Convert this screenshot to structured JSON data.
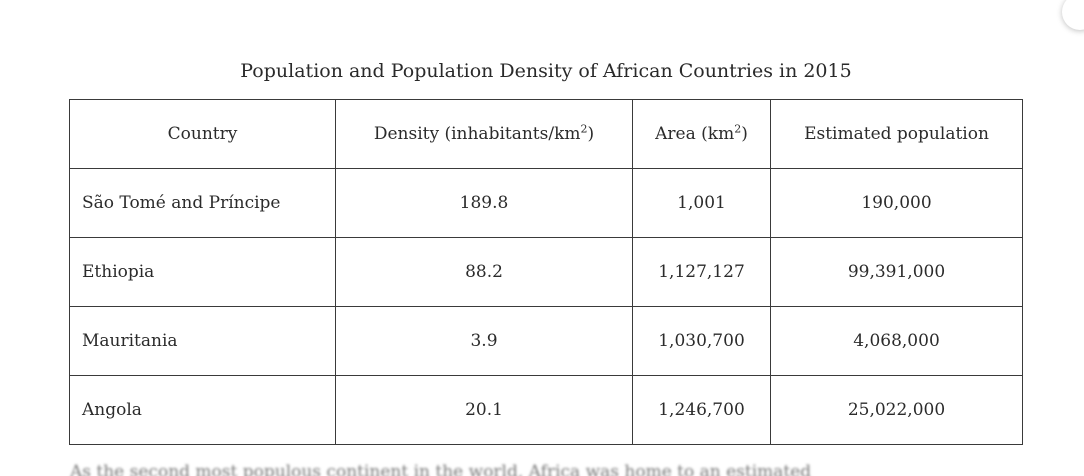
{
  "table": {
    "caption": "Population and Population Density of African Countries in 2015",
    "headers": {
      "country": "Country",
      "density_prefix": "Density (inhabitants/km",
      "density_sup": "2",
      "density_suffix": ")",
      "area_prefix": "Area (km",
      "area_sup": "2",
      "area_suffix": ")",
      "population": "Estimated population"
    },
    "rows": [
      {
        "country": "São Tomé and Príncipe",
        "density": "189.8",
        "area": "1,001",
        "population": "190,000"
      },
      {
        "country": "Ethiopia",
        "density": "88.2",
        "area": "1,127,127",
        "population": "99,391,000"
      },
      {
        "country": "Mauritania",
        "density": "3.9",
        "area": "1,030,700",
        "population": "4,068,000"
      },
      {
        "country": "Angola",
        "density": "20.1",
        "area": "1,246,700",
        "population": "25,022,000"
      }
    ]
  },
  "footer_text": "As the second most populous continent in the world, Africa was home to an estimated"
}
